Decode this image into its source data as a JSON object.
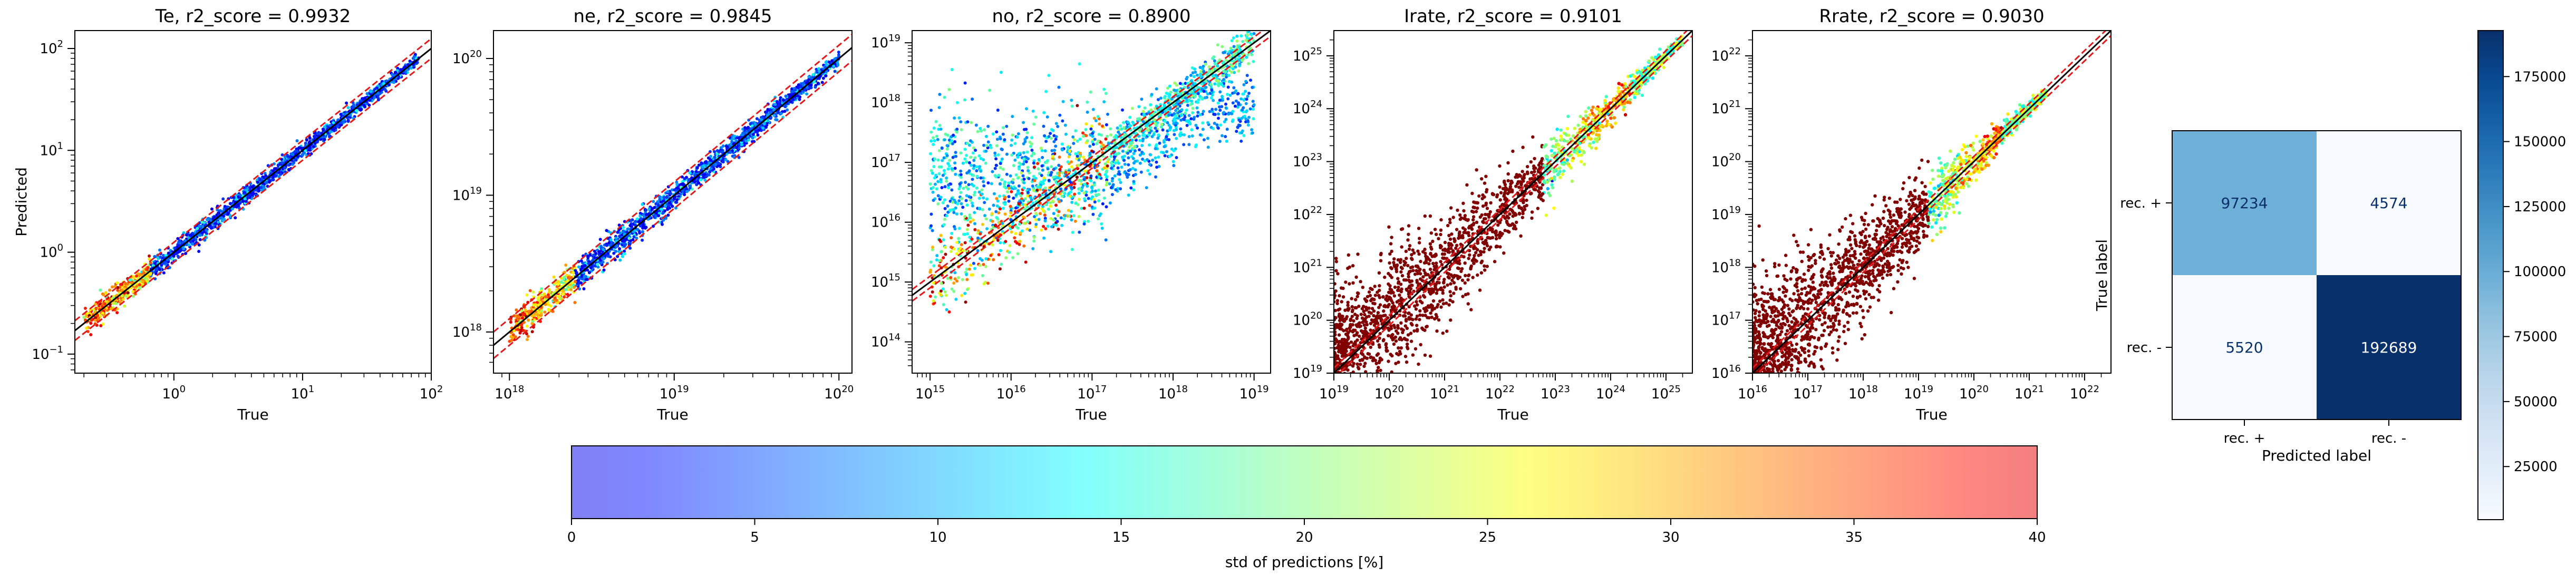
{
  "chart_data": [
    {
      "type": "scatter",
      "title": "Te, r2_score = 0.9932",
      "xlabel": "True",
      "ylabel": "Predicted",
      "xscale": "log",
      "yscale": "log",
      "xlim": [
        0.17,
        100
      ],
      "ylim": [
        0.065,
        150
      ],
      "xticks": [
        {
          "v": 1,
          "b": "10",
          "e": "0"
        },
        {
          "v": 10,
          "b": "10",
          "e": "1"
        },
        {
          "v": 100,
          "b": "10",
          "e": "2"
        }
      ],
      "yticks": [
        {
          "v": 0.1,
          "b": "10",
          "e": "−1"
        },
        {
          "v": 1,
          "b": "10",
          "e": "0"
        },
        {
          "v": 10,
          "b": "10",
          "e": "1"
        },
        {
          "v": 100,
          "b": "10",
          "e": "2"
        }
      ],
      "data_range": [
        0.2,
        80
      ],
      "spread": "tight",
      "identity_line": true,
      "bounds_lines": true
    },
    {
      "type": "scatter",
      "title": "ne, r2_score = 0.9845",
      "xlabel": "True",
      "ylabel": "",
      "xscale": "log",
      "yscale": "log",
      "xlim": [
        8e+17,
        1.2e+20
      ],
      "ylim": [
        5e+17,
        1.6e+20
      ],
      "xticks": [
        {
          "v": 1e+18,
          "b": "10",
          "e": "18"
        },
        {
          "v": 1e+19,
          "b": "10",
          "e": "19"
        },
        {
          "v": 1e+20,
          "b": "10",
          "e": "20"
        }
      ],
      "yticks": [
        {
          "v": 1e+18,
          "b": "10",
          "e": "18"
        },
        {
          "v": 1e+19,
          "b": "10",
          "e": "19"
        },
        {
          "v": 1e+20,
          "b": "10",
          "e": "20"
        }
      ],
      "data_range": [
        1e+18,
        1e+20
      ],
      "spread": "tight",
      "identity_line": true,
      "bounds_lines": true
    },
    {
      "type": "scatter",
      "title": "no, r2_score = 0.8900",
      "xlabel": "True",
      "ylabel": "",
      "xscale": "log",
      "yscale": "log",
      "xlim": [
        600000000000000.0,
        1.6e+19
      ],
      "ylim": [
        30000000000000.0,
        1.6e+19
      ],
      "xticks": [
        {
          "v": 1000000000000000.0,
          "b": "10",
          "e": "15"
        },
        {
          "v": 1e+16,
          "b": "10",
          "e": "16"
        },
        {
          "v": 1e+17,
          "b": "10",
          "e": "17"
        },
        {
          "v": 1e+18,
          "b": "10",
          "e": "18"
        },
        {
          "v": 1e+19,
          "b": "10",
          "e": "19"
        }
      ],
      "yticks": [
        {
          "v": 100000000000000.0,
          "b": "10",
          "e": "14"
        },
        {
          "v": 1000000000000000.0,
          "b": "10",
          "e": "15"
        },
        {
          "v": 1e+16,
          "b": "10",
          "e": "16"
        },
        {
          "v": 1e+17,
          "b": "10",
          "e": "17"
        },
        {
          "v": 1e+18,
          "b": "10",
          "e": "18"
        },
        {
          "v": 1e+19,
          "b": "10",
          "e": "19"
        }
      ],
      "data_range": [
        1000000000000000.0,
        1e+19
      ],
      "spread": "plateau",
      "plateau_level": 2e+16,
      "identity_line": true,
      "bounds_lines": true
    },
    {
      "type": "scatter",
      "title": "Irate, r2_score = 0.9101",
      "xlabel": "True",
      "ylabel": "",
      "xscale": "log",
      "yscale": "log",
      "xlim": [
        1e+19,
        3e+25
      ],
      "ylim": [
        1e+19,
        3e+25
      ],
      "xticks": [
        {
          "v": 1e+19,
          "b": "10",
          "e": "19"
        },
        {
          "v": 1e+20,
          "b": "10",
          "e": "20"
        },
        {
          "v": 1e+21,
          "b": "10",
          "e": "21"
        },
        {
          "v": 1e+22,
          "b": "10",
          "e": "22"
        },
        {
          "v": 1e+23,
          "b": "10",
          "e": "23"
        },
        {
          "v": 1e+24,
          "b": "10",
          "e": "24"
        },
        {
          "v": 1e+25,
          "b": "10",
          "e": "25"
        }
      ],
      "yticks": [
        {
          "v": 1e+19,
          "b": "10",
          "e": "19"
        },
        {
          "v": 1e+20,
          "b": "10",
          "e": "20"
        },
        {
          "v": 1e+21,
          "b": "10",
          "e": "21"
        },
        {
          "v": 1e+22,
          "b": "10",
          "e": "22"
        },
        {
          "v": 1e+23,
          "b": "10",
          "e": "23"
        },
        {
          "v": 1e+24,
          "b": "10",
          "e": "24"
        },
        {
          "v": 1e+25,
          "b": "10",
          "e": "25"
        }
      ],
      "data_range": [
        1e+19,
        2e+25
      ],
      "spread": "wide_low",
      "identity_line": true,
      "bounds_lines": true
    },
    {
      "type": "scatter",
      "title": "Rrate, r2_score = 0.9030",
      "xlabel": "True",
      "ylabel": "",
      "xscale": "log",
      "yscale": "log",
      "xlim": [
        1e+16,
        3e+22
      ],
      "ylim": [
        1e+16,
        3e+22
      ],
      "xticks": [
        {
          "v": 1e+16,
          "b": "10",
          "e": "16"
        },
        {
          "v": 1e+17,
          "b": "10",
          "e": "17"
        },
        {
          "v": 1e+18,
          "b": "10",
          "e": "18"
        },
        {
          "v": 1e+19,
          "b": "10",
          "e": "19"
        },
        {
          "v": 1e+20,
          "b": "10",
          "e": "20"
        },
        {
          "v": 1e+21,
          "b": "10",
          "e": "21"
        },
        {
          "v": 1e+22,
          "b": "10",
          "e": "22"
        }
      ],
      "yticks": [
        {
          "v": 1e+16,
          "b": "10",
          "e": "16"
        },
        {
          "v": 1e+17,
          "b": "10",
          "e": "17"
        },
        {
          "v": 1e+18,
          "b": "10",
          "e": "18"
        },
        {
          "v": 1e+19,
          "b": "10",
          "e": "19"
        },
        {
          "v": 1e+20,
          "b": "10",
          "e": "20"
        },
        {
          "v": 1e+21,
          "b": "10",
          "e": "21"
        },
        {
          "v": 1e+22,
          "b": "10",
          "e": "22"
        }
      ],
      "data_range": [
        1e+16,
        2e+21
      ],
      "spread": "wide_low",
      "identity_line": true,
      "bounds_lines": true
    },
    {
      "type": "heatmap",
      "xlabel": "Predicted label",
      "ylabel": "True label",
      "x_categories": [
        "rec. +",
        "rec. -"
      ],
      "y_categories": [
        "rec. +",
        "rec. -"
      ],
      "values": [
        [
          97234,
          4574
        ],
        [
          5520,
          192689
        ]
      ],
      "colormap": "Blues",
      "colorbar": {
        "min": 4574,
        "max": 192689,
        "ticks": [
          25000,
          50000,
          75000,
          100000,
          125000,
          150000,
          175000
        ]
      }
    },
    {
      "type": "colorbar",
      "label": "std of predictions [%]",
      "min": 0,
      "max": 40,
      "ticks": [
        0,
        5,
        10,
        15,
        20,
        25,
        30,
        35,
        40
      ],
      "colormap": "jet",
      "alpha": 0.5
    }
  ]
}
